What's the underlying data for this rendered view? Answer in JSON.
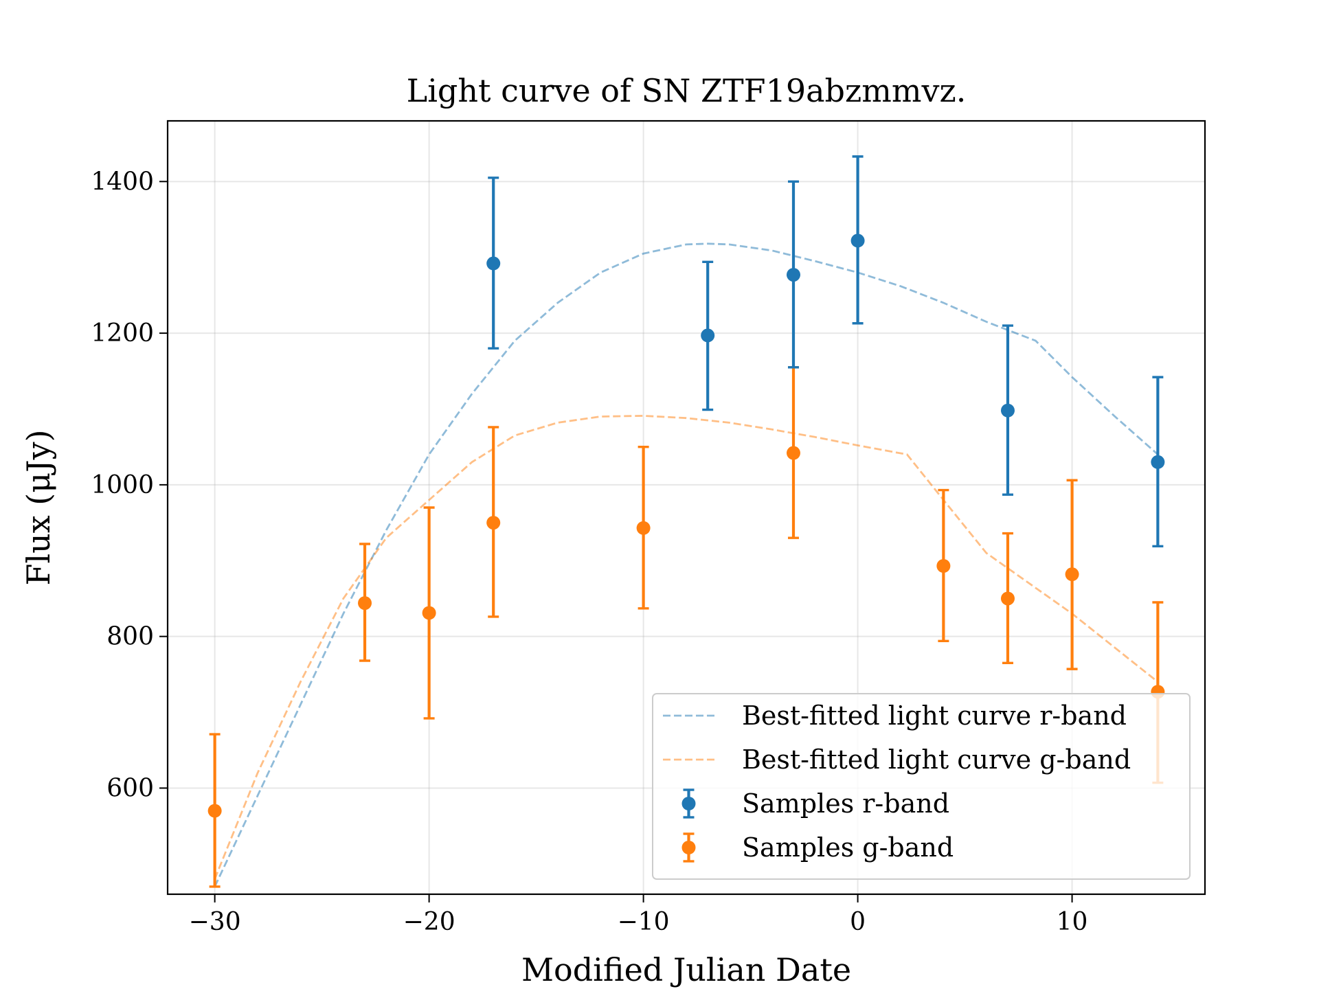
{
  "chart_data": {
    "type": "scatter",
    "title": "Light curve of SN ZTF19abzmmvz.",
    "xlabel": "Modified Julian Date",
    "ylabel": "Flux (μJy)",
    "xlim": [
      -32.2,
      16.2
    ],
    "ylim": [
      460,
      1480
    ],
    "xticks": [
      -30,
      -20,
      -10,
      0,
      10
    ],
    "xtick_labels": [
      "−30",
      "−20",
      "−10",
      "0",
      "10"
    ],
    "yticks": [
      600,
      800,
      1000,
      1200,
      1400
    ],
    "ytick_labels": [
      "600",
      "800",
      "1000",
      "1200",
      "1400"
    ],
    "grid": true,
    "legend_position": "lower-right",
    "colors": {
      "r": "#1f77b4",
      "g": "#ff7f0e"
    },
    "series": [
      {
        "name": "Best-fitted light curve r-band",
        "kind": "line",
        "style": "dashed",
        "color": "#1f77b4",
        "x": [
          -30,
          -28,
          -26,
          -24,
          -22,
          -20,
          -18,
          -16,
          -14,
          -12,
          -10,
          -8,
          -7,
          -6,
          -4,
          -2,
          0,
          2,
          4,
          6,
          8.3,
          10,
          12,
          14
        ],
        "y": [
          470,
          590,
          710,
          830,
          940,
          1040,
          1120,
          1190,
          1240,
          1280,
          1305,
          1317,
          1318,
          1317,
          1309,
          1295,
          1280,
          1262,
          1240,
          1215,
          1190,
          1142,
          1090,
          1040
        ]
      },
      {
        "name": "Best-fitted light curve g-band",
        "kind": "line",
        "style": "dashed",
        "color": "#ff7f0e",
        "x": [
          -30,
          -28,
          -26,
          -24,
          -22,
          -20,
          -18,
          -16,
          -14,
          -12,
          -10,
          -8,
          -6,
          -4,
          -2,
          0,
          2.3,
          4,
          6,
          8,
          10,
          12,
          14
        ],
        "y": [
          480,
          620,
          740,
          850,
          930,
          980,
          1030,
          1065,
          1082,
          1090,
          1091,
          1088,
          1082,
          1073,
          1063,
          1052,
          1040,
          980,
          910,
          870,
          830,
          785,
          740
        ]
      },
      {
        "name": "Samples r-band",
        "kind": "errorbar",
        "color": "#1f77b4",
        "x": [
          -17,
          -7,
          -3,
          0,
          7,
          14
        ],
        "y": [
          1292,
          1197,
          1277,
          1322,
          1098,
          1030
        ],
        "yerr_low": [
          1180,
          1099,
          1155,
          1213,
          987,
          919
        ],
        "yerr_high": [
          1405,
          1294,
          1400,
          1433,
          1210,
          1142
        ]
      },
      {
        "name": "Samples g-band",
        "kind": "errorbar",
        "color": "#ff7f0e",
        "x": [
          -30,
          -23,
          -20,
          -17,
          -10,
          -3,
          4,
          7,
          10,
          14
        ],
        "y": [
          570,
          844,
          831,
          950,
          943,
          1042,
          893,
          850,
          882,
          727
        ],
        "yerr_low": [
          470,
          768,
          692,
          826,
          837,
          930,
          794,
          765,
          757,
          607
        ],
        "yerr_high": [
          671,
          922,
          970,
          1076,
          1050,
          1155,
          993,
          936,
          1006,
          845
        ]
      }
    ]
  }
}
